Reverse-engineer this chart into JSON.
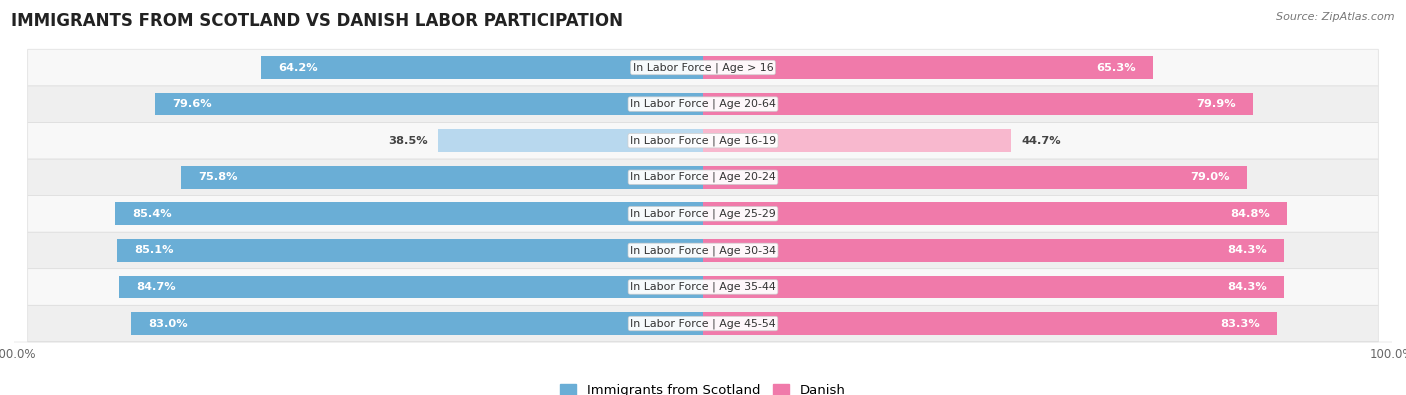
{
  "title": "IMMIGRANTS FROM SCOTLAND VS DANISH LABOR PARTICIPATION",
  "source": "Source: ZipAtlas.com",
  "categories": [
    "In Labor Force | Age > 16",
    "In Labor Force | Age 20-64",
    "In Labor Force | Age 16-19",
    "In Labor Force | Age 20-24",
    "In Labor Force | Age 25-29",
    "In Labor Force | Age 30-34",
    "In Labor Force | Age 35-44",
    "In Labor Force | Age 45-54"
  ],
  "scotland_values": [
    64.2,
    79.6,
    38.5,
    75.8,
    85.4,
    85.1,
    84.7,
    83.0
  ],
  "danish_values": [
    65.3,
    79.9,
    44.7,
    79.0,
    84.8,
    84.3,
    84.3,
    83.3
  ],
  "scotland_color": "#6aaed6",
  "danish_color": "#f07aaa",
  "scotland_color_light": "#b8d8ee",
  "danish_color_light": "#f8b8ce",
  "row_bg_even": "#efefef",
  "row_bg_odd": "#f8f8f8",
  "bar_height": 0.62,
  "max_value": 100.0,
  "title_fontsize": 12,
  "label_fontsize": 8.2,
  "tick_fontsize": 8.5,
  "legend_fontsize": 9.5
}
